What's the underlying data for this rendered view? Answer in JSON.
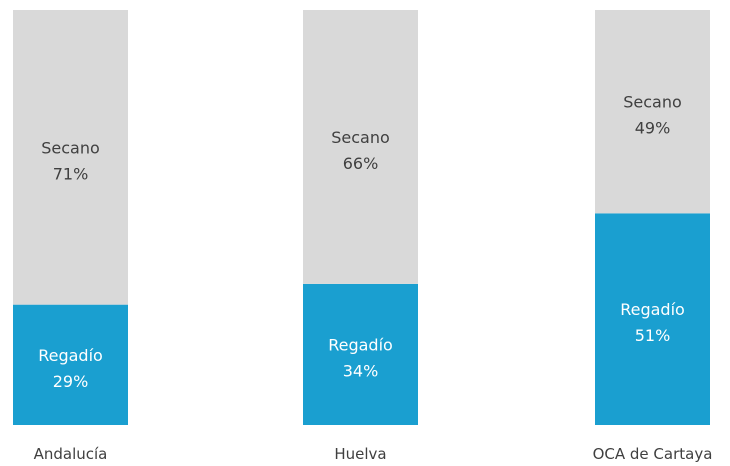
{
  "chart_data": {
    "type": "bar",
    "stacked": true,
    "normalized": true,
    "categories": [
      "Andalucía",
      "Huelva",
      "OCA de Cartaya"
    ],
    "series": [
      {
        "name": "Regadío",
        "values": [
          29,
          34,
          51
        ],
        "labels": [
          "29%",
          "34%",
          "51%"
        ],
        "color": "#1a9fd0",
        "text_color": "#ffffff"
      },
      {
        "name": "Secano",
        "values": [
          71,
          66,
          49
        ],
        "labels": [
          "71%",
          "66%",
          "49%"
        ],
        "color": "#d9d9d9",
        "text_color": "#404040"
      }
    ],
    "ylim": [
      0,
      100
    ],
    "title": "",
    "xlabel": "",
    "ylabel": "",
    "grid": false,
    "legend": "none"
  }
}
